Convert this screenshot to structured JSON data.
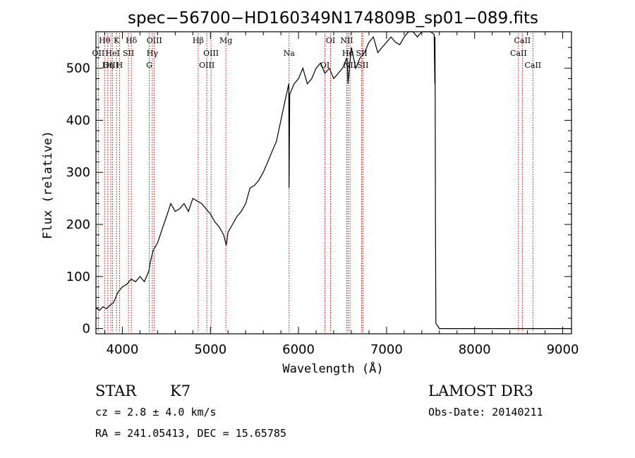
{
  "chart_data": {
    "type": "line",
    "title": "spec−56700−HD160349N174809B_sp01−089.fits",
    "xlabel": "Wavelength (Å)",
    "ylabel": "Flux (relative)",
    "xlim": [
      3700,
      9100
    ],
    "ylim": [
      -10,
      570
    ],
    "xticks": [
      4000,
      5000,
      6000,
      7000,
      8000,
      9000
    ],
    "yticks": [
      0,
      100,
      200,
      300,
      400,
      500
    ],
    "series": [
      {
        "name": "flux",
        "x": [
          3700,
          3740,
          3780,
          3820,
          3860,
          3900,
          3950,
          4000,
          4050,
          4100,
          4150,
          4200,
          4250,
          4300,
          4320,
          4350,
          4400,
          4450,
          4500,
          4550,
          4600,
          4650,
          4700,
          4750,
          4800,
          4850,
          4900,
          4950,
          5000,
          5050,
          5100,
          5150,
          5180,
          5200,
          5250,
          5300,
          5350,
          5400,
          5450,
          5500,
          5550,
          5600,
          5650,
          5700,
          5750,
          5800,
          5850,
          5890,
          5893,
          5896,
          5900,
          5950,
          6000,
          6050,
          6100,
          6150,
          6200,
          6250,
          6300,
          6350,
          6400,
          6450,
          6500,
          6550,
          6563,
          6600,
          6650,
          6700,
          6750,
          6800,
          6850,
          6900,
          6950,
          7000,
          7050,
          7100,
          7150,
          7200,
          7250,
          7300,
          7350,
          7400,
          7450,
          7500,
          7540,
          7548,
          7550,
          7552,
          7555,
          7560,
          7600,
          8000,
          8500,
          9000,
          9100
        ],
        "y": [
          40,
          35,
          42,
          38,
          45,
          50,
          70,
          80,
          85,
          95,
          90,
          100,
          90,
          110,
          130,
          150,
          165,
          190,
          215,
          240,
          225,
          230,
          240,
          225,
          250,
          245,
          240,
          230,
          220,
          205,
          195,
          180,
          160,
          185,
          200,
          215,
          225,
          240,
          270,
          275,
          285,
          300,
          320,
          340,
          360,
          400,
          440,
          470,
          270,
          350,
          450,
          470,
          480,
          500,
          470,
          480,
          500,
          510,
          490,
          500,
          480,
          490,
          500,
          520,
          470,
          540,
          500,
          520,
          530,
          550,
          560,
          530,
          540,
          550,
          560,
          550,
          545,
          560,
          570,
          575,
          560,
          570,
          575,
          570,
          565,
          470,
          560,
          450,
          200,
          10,
          0,
          0,
          0,
          0,
          0
        ]
      }
    ],
    "line_markers": [
      {
        "label": "Hθ",
        "x": 3798
      },
      {
        "label": "OII",
        "x": 3727
      },
      {
        "label": "OIII",
        "x": 3869
      },
      {
        "label": "K",
        "x": 3934
      },
      {
        "label": "HeI",
        "x": 3889
      },
      {
        "label": "Hη",
        "x": 3835
      },
      {
        "label": "Hδ",
        "x": 4102
      },
      {
        "label": "SII",
        "x": 4069
      },
      {
        "label": "H",
        "x": 3968
      },
      {
        "label": "OIII",
        "x": 4363
      },
      {
        "label": "Hγ",
        "x": 4340
      },
      {
        "label": "G",
        "x": 4305
      },
      {
        "label": "Hβ",
        "x": 4861
      },
      {
        "label": "OIII",
        "x": 5007
      },
      {
        "label": "OIII",
        "x": 4959
      },
      {
        "label": "Mg",
        "x": 5175
      },
      {
        "label": "Na",
        "x": 5893
      },
      {
        "label": "OI",
        "x": 6300
      },
      {
        "label": "OI",
        "x": 6364
      },
      {
        "label": "Hα",
        "x": 6563
      },
      {
        "label": "NII",
        "x": 6584
      },
      {
        "label": "NII",
        "x": 6548
      },
      {
        "label": "SII",
        "x": 6717
      },
      {
        "label": "SII",
        "x": 6731
      },
      {
        "label": "CaII",
        "x": 8542
      },
      {
        "label": "CaII",
        "x": 8498
      },
      {
        "label": "CaII",
        "x": 8662
      }
    ]
  },
  "info": {
    "class": "STAR",
    "subclass": "K7",
    "survey": "LAMOST DR3",
    "cz": "cz = 2.8 ± 4.0 km/s",
    "obs_date": "Obs-Date: 20140211",
    "coords": "RA = 241.05413, DEC =  15.65785"
  },
  "colors": {
    "line_marker": "#c00000",
    "spectrum": "#000000",
    "axes": "#000000"
  }
}
